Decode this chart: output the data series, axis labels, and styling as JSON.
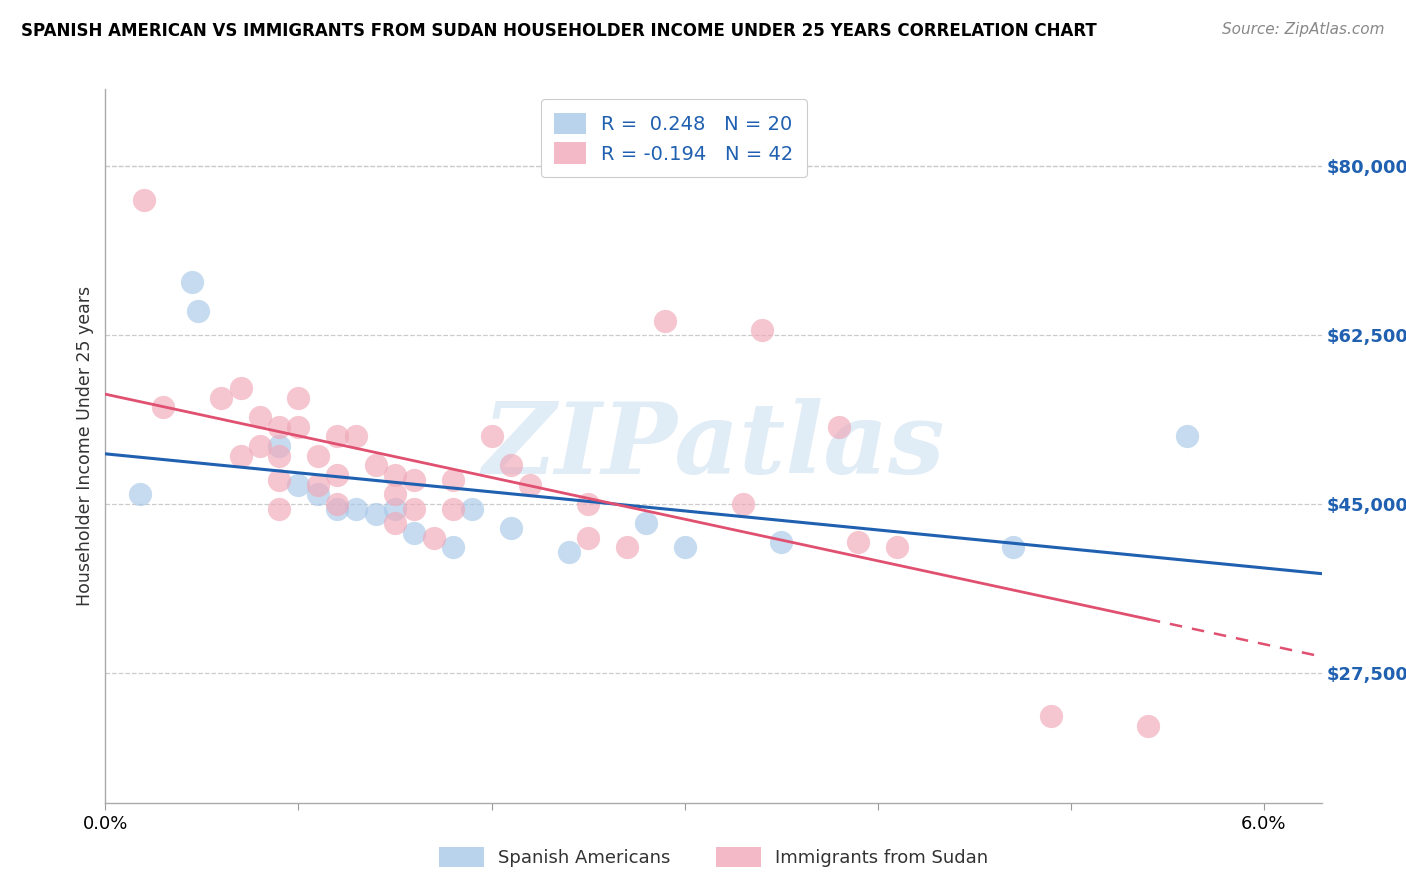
{
  "title": "SPANISH AMERICAN VS IMMIGRANTS FROM SUDAN HOUSEHOLDER INCOME UNDER 25 YEARS CORRELATION CHART",
  "source": "Source: ZipAtlas.com",
  "ylabel": "Householder Income Under 25 years",
  "xlim": [
    0.0,
    0.063
  ],
  "ylim": [
    14000,
    88000
  ],
  "ytick_vals": [
    27500,
    45000,
    62500,
    80000
  ],
  "ytick_labels": [
    "$27,500",
    "$45,000",
    "$62,500",
    "$80,000"
  ],
  "blue_color": "#a8c8e8",
  "pink_color": "#f0a8b8",
  "blue_line_color": "#2060b0",
  "pink_line_color": "#e05070",
  "watermark_text": "ZIPatlas",
  "legend_entries": [
    "R =  0.248   N = 20",
    "R = -0.194   N = 42"
  ],
  "bottom_legend": [
    "Spanish Americans",
    "Immigrants from Sudan"
  ],
  "blue_points": [
    [
      0.0018,
      46000
    ],
    [
      0.0045,
      68000
    ],
    [
      0.0048,
      65000
    ],
    [
      0.009,
      51000
    ],
    [
      0.01,
      47000
    ],
    [
      0.011,
      46000
    ],
    [
      0.012,
      44500
    ],
    [
      0.013,
      44500
    ],
    [
      0.014,
      44000
    ],
    [
      0.015,
      44500
    ],
    [
      0.016,
      42000
    ],
    [
      0.018,
      40500
    ],
    [
      0.019,
      44500
    ],
    [
      0.021,
      42500
    ],
    [
      0.024,
      40000
    ],
    [
      0.028,
      43000
    ],
    [
      0.03,
      40500
    ],
    [
      0.035,
      41000
    ],
    [
      0.047,
      40500
    ],
    [
      0.056,
      52000
    ]
  ],
  "pink_points": [
    [
      0.002,
      76500
    ],
    [
      0.003,
      55000
    ],
    [
      0.006,
      56000
    ],
    [
      0.007,
      57000
    ],
    [
      0.007,
      50000
    ],
    [
      0.008,
      54000
    ],
    [
      0.008,
      51000
    ],
    [
      0.009,
      53000
    ],
    [
      0.009,
      50000
    ],
    [
      0.009,
      47500
    ],
    [
      0.009,
      44500
    ],
    [
      0.01,
      56000
    ],
    [
      0.01,
      53000
    ],
    [
      0.011,
      50000
    ],
    [
      0.011,
      47000
    ],
    [
      0.012,
      52000
    ],
    [
      0.012,
      48000
    ],
    [
      0.012,
      45000
    ],
    [
      0.013,
      52000
    ],
    [
      0.014,
      49000
    ],
    [
      0.015,
      48000
    ],
    [
      0.015,
      46000
    ],
    [
      0.015,
      43000
    ],
    [
      0.016,
      47500
    ],
    [
      0.016,
      44500
    ],
    [
      0.017,
      41500
    ],
    [
      0.018,
      47500
    ],
    [
      0.018,
      44500
    ],
    [
      0.02,
      52000
    ],
    [
      0.021,
      49000
    ],
    [
      0.022,
      47000
    ],
    [
      0.025,
      45000
    ],
    [
      0.025,
      41500
    ],
    [
      0.027,
      40500
    ],
    [
      0.029,
      64000
    ],
    [
      0.033,
      45000
    ],
    [
      0.034,
      63000
    ],
    [
      0.038,
      53000
    ],
    [
      0.039,
      41000
    ],
    [
      0.041,
      40500
    ],
    [
      0.049,
      23000
    ],
    [
      0.054,
      22000
    ]
  ]
}
